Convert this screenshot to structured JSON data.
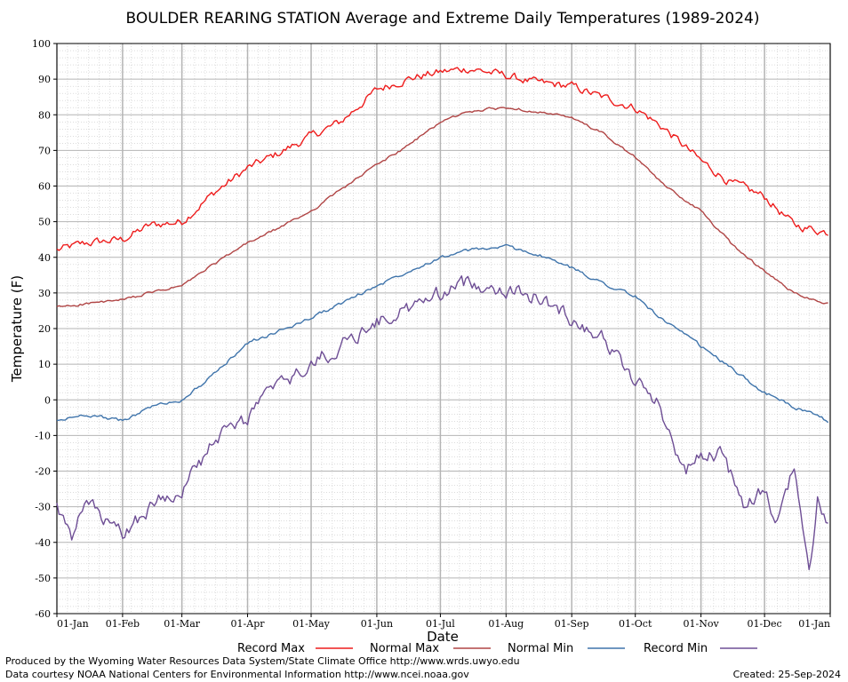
{
  "chart_data": {
    "type": "line",
    "title": "BOULDER REARING STATION Average and Extreme Daily Temperatures (1989-2024)",
    "xlabel": "Date",
    "ylabel": "Temperature (F)",
    "ylim": [
      -60,
      100
    ],
    "yticks": [
      "-60",
      "-50",
      "-40",
      "-30",
      "-20",
      "-10",
      "0",
      "10",
      "20",
      "30",
      "40",
      "50",
      "60",
      "70",
      "80",
      "90",
      "100"
    ],
    "xticks": [
      "01-Jan",
      "01-Feb",
      "01-Mar",
      "01-Apr",
      "01-May",
      "01-Jun",
      "01-Jul",
      "01-Aug",
      "01-Sep",
      "01-Oct",
      "01-Nov",
      "01-Dec",
      "01-Jan"
    ],
    "grid": true,
    "legend_position": "bottom",
    "series_style": {
      "record_max_color": "#ee1c1c",
      "normal_max_color": "#b04545",
      "normal_min_color": "#3f74ab",
      "record_min_color": "#6e4e95"
    },
    "series": [
      {
        "name": "Record Max",
        "color": "#ee1c1c",
        "x": [
          1,
          15,
          32,
          45,
          60,
          75,
          91,
          105,
          121,
          135,
          152,
          166,
          182,
          196,
          213,
          227,
          244,
          258,
          274,
          288,
          305,
          319,
          335,
          349,
          365
        ],
        "values": [
          42,
          44,
          45,
          49,
          50,
          58,
          65,
          69,
          74,
          78,
          87,
          90,
          92,
          93,
          91,
          89,
          88,
          85,
          82,
          76,
          67,
          61,
          57,
          49,
          47
        ]
      },
      {
        "name": "Normal Max",
        "color": "#b04545",
        "x": [
          1,
          15,
          32,
          45,
          60,
          75,
          91,
          105,
          121,
          135,
          152,
          166,
          182,
          196,
          213,
          227,
          244,
          258,
          274,
          288,
          305,
          319,
          335,
          349,
          365
        ],
        "values": [
          26,
          27,
          28,
          30,
          32,
          38,
          44,
          48,
          53,
          59,
          66,
          71,
          78,
          81,
          82,
          81,
          79,
          75,
          68,
          60,
          53,
          44,
          36,
          30,
          27
        ]
      },
      {
        "name": "Normal Min",
        "color": "#3f74ab",
        "x": [
          1,
          15,
          32,
          45,
          60,
          75,
          91,
          105,
          121,
          135,
          152,
          166,
          182,
          196,
          213,
          227,
          244,
          258,
          274,
          288,
          305,
          319,
          335,
          349,
          365
        ],
        "values": [
          -6,
          -4,
          -6,
          -2,
          0,
          7,
          16,
          19,
          23,
          27,
          32,
          36,
          40,
          42,
          43,
          41,
          37,
          33,
          29,
          22,
          15,
          9,
          2,
          -2,
          -6
        ]
      },
      {
        "name": "Record Min",
        "color": "#6e4e95",
        "x": [
          1,
          8,
          15,
          25,
          32,
          45,
          52,
          60,
          68,
          78,
          85,
          91,
          100,
          110,
          121,
          135,
          152,
          166,
          182,
          196,
          213,
          227,
          244,
          258,
          274,
          285,
          290,
          298,
          305,
          315,
          325,
          335,
          340,
          349,
          356,
          360,
          365
        ],
        "values": [
          -30,
          -40,
          -28,
          -35,
          -38,
          -30,
          -27,
          -25,
          -18,
          -10,
          -8,
          -5,
          2,
          5,
          10,
          15,
          22,
          25,
          30,
          33,
          31,
          29,
          23,
          18,
          5,
          0,
          -10,
          -20,
          -15,
          -15,
          -30,
          -25,
          -35,
          -18,
          -50,
          -28,
          -35
        ]
      }
    ]
  },
  "legend": {
    "record_max": "Record Max",
    "normal_max": "Normal Max",
    "normal_min": "Normal Min",
    "record_min": "Record Min"
  },
  "footer": {
    "produced_by": "Produced by the Wyoming Water Resources Data System/State Climate Office http://www.wrds.uwyo.edu",
    "data_courtesy": "Data courtesy NOAA National Centers for Environmental Information http://www.ncei.noaa.gov",
    "created": "Created:  25-Sep-2024"
  }
}
